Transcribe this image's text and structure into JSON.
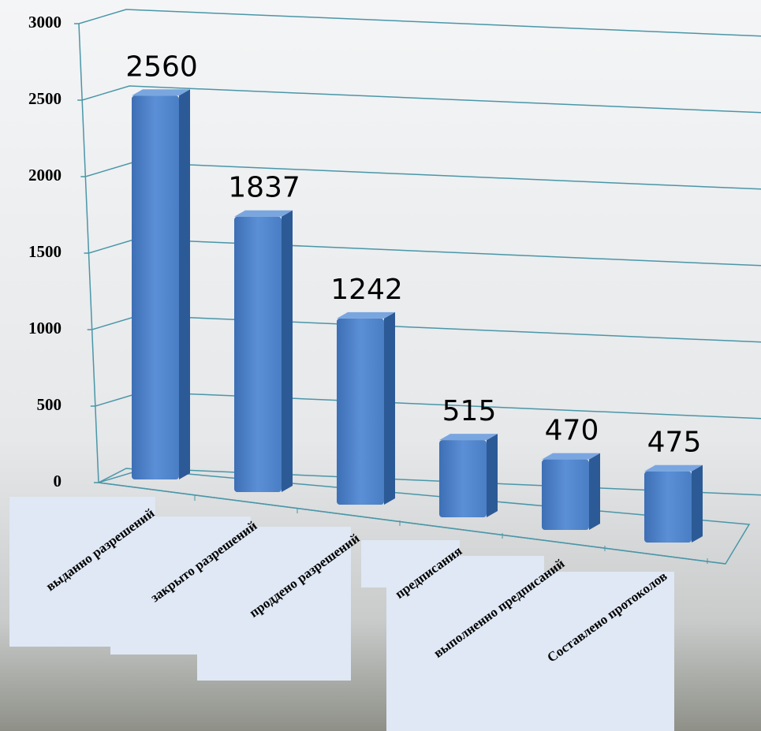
{
  "chart_data": {
    "type": "bar3d",
    "categories": [
      "выданно разрешений",
      "закрыто разрешений",
      "проддено разрешений",
      "предписания",
      "выполненно предписаний",
      "Составлено протоколов"
    ],
    "values": [
      2560,
      1837,
      1242,
      515,
      470,
      475
    ],
    "color": "#4a7ec4",
    "ylim": [
      0,
      3000
    ],
    "yticks": [
      0,
      500,
      1000,
      1500,
      2000,
      2500,
      3000
    ],
    "grid": true
  }
}
